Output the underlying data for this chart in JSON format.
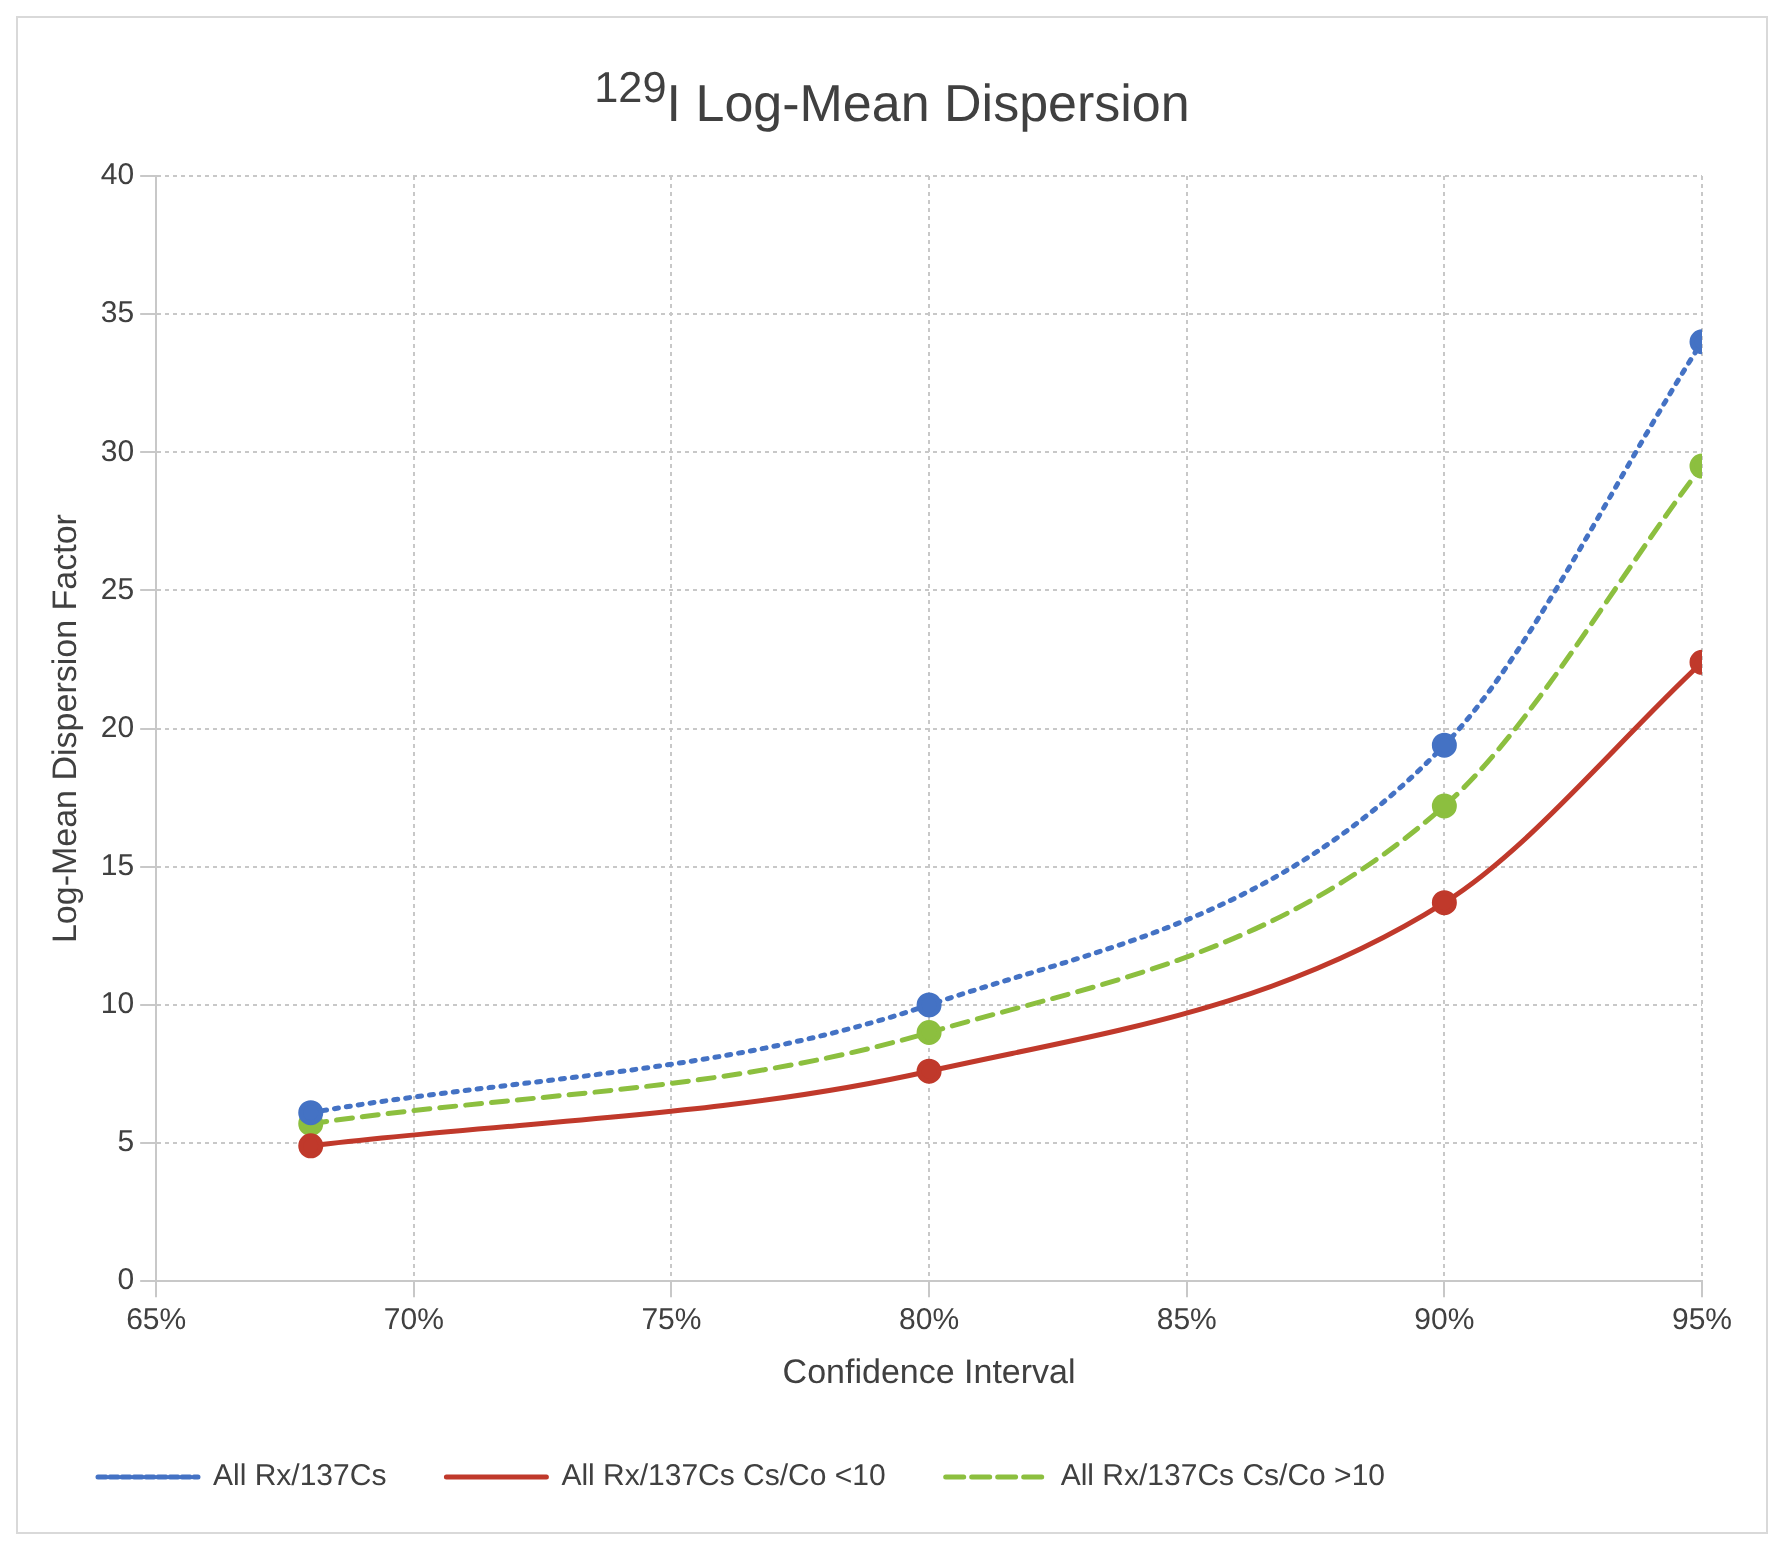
{
  "chart_data": {
    "type": "line",
    "title": "$^{129}$I Log-Mean Dispersion",
    "xlabel": "Confidence Interval",
    "ylabel": "Log-Mean Dispersion Factor",
    "x": [
      68,
      80,
      90,
      95
    ],
    "xlim": [
      65,
      95
    ],
    "xticks": [
      {
        "value": 65,
        "label": "65%"
      },
      {
        "value": 70,
        "label": "70%"
      },
      {
        "value": 75,
        "label": "75%"
      },
      {
        "value": 80,
        "label": "80%"
      },
      {
        "value": 85,
        "label": "85%"
      },
      {
        "value": 90,
        "label": "90%"
      },
      {
        "value": 95,
        "label": "95%"
      }
    ],
    "ylim": [
      0,
      40
    ],
    "yticks": [
      0,
      5,
      10,
      15,
      20,
      25,
      30,
      35,
      40
    ],
    "series": [
      {
        "name": "All Rx/137Cs",
        "color": "#4472c4",
        "values": [
          6.1,
          10.0,
          19.4,
          34.0
        ],
        "line_style": "dotted"
      },
      {
        "name": "All Rx/137Cs Cs/Co <10",
        "color": "#c0392b",
        "values": [
          4.9,
          7.6,
          13.7,
          22.4
        ],
        "line_style": "solid"
      },
      {
        "name": "All Rx/137Cs Cs/Co >10",
        "color": "#8cbf3f",
        "values": [
          5.7,
          9.0,
          17.2,
          29.5
        ],
        "line_style": "dashed"
      }
    ],
    "grid": true,
    "legend": "bottom",
    "marker": "circle"
  }
}
